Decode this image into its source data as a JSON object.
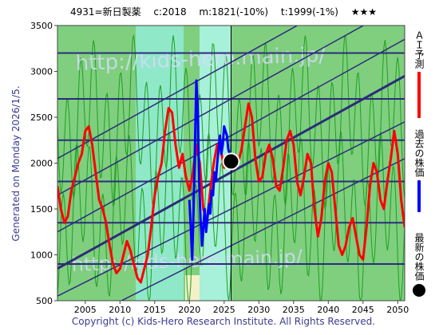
{
  "header": {
    "title": "4931=新日製薬　 c:2018 　m:1821(-10%) 　t:1999(-1%) 　★★★"
  },
  "side_label": "Generated on Monday 2026/1/5.",
  "footer": "Copyright (c) Kids-Hero Research Institute. All Rights Reserved.",
  "watermark": {
    "line1": "http://kids-hero.main.jp/",
    "line2": "http://kids-hero.main.jp/"
  },
  "legend": [
    {
      "label": "ＡＩ予測",
      "color": "#ff0000"
    },
    {
      "label": "過去の株価",
      "color": "#0000ff"
    },
    {
      "label": "最新の株価",
      "color": "#000000"
    }
  ],
  "chart_data": {
    "type": "line",
    "title": "4931=新日製薬　 c:2018 　m:1821(-10%) 　t:1999(-1%) 　★★★",
    "xlabel": "",
    "ylabel": "",
    "xlim": [
      2001,
      2051
    ],
    "ylim": [
      500,
      3500
    ],
    "x_ticks": [
      2005,
      2010,
      2015,
      2020,
      2025,
      2030,
      2035,
      2040,
      2045,
      2050
    ],
    "y_ticks": [
      500,
      1000,
      1500,
      2000,
      2500,
      3000,
      3500
    ],
    "grid": false,
    "colors": {
      "ai": "#ff0000",
      "past": "#0000ff",
      "latest": "#000000",
      "band": "#2c2c7a",
      "green": "#1f9f1f"
    },
    "horizontal_lines": [
      900,
      1350,
      1800,
      2250,
      2700,
      3200
    ],
    "trend_lines": [
      {
        "x": [
          2001,
          2051
        ],
        "y": [
          550,
          2450
        ]
      },
      {
        "x": [
          2001,
          2051
        ],
        "y": [
          850,
          2950
        ],
        "bold": true
      },
      {
        "x": [
          2001,
          2051
        ],
        "y": [
          1250,
          3350
        ]
      },
      {
        "x": [
          2001,
          2051
        ],
        "y": [
          1650,
          3750
        ]
      },
      {
        "x": [
          2001,
          2051
        ],
        "y": [
          2050,
          4150
        ]
      },
      {
        "x": [
          2001,
          2051
        ],
        "y": [
          150,
          2050
        ]
      }
    ],
    "latest_point": {
      "x": 2026.0,
      "y": 2018
    },
    "series": [
      {
        "name": "ＡＩ予測",
        "color": "#ff0000",
        "x": [
          2001.0,
          2001.5,
          2002.0,
          2002.5,
          2003.0,
          2003.5,
          2004.0,
          2004.5,
          2005.0,
          2005.5,
          2006.0,
          2006.5,
          2007.0,
          2007.5,
          2008.0,
          2008.5,
          2009.0,
          2009.5,
          2010.0,
          2010.5,
          2011.0,
          2011.5,
          2012.0,
          2012.5,
          2013.0,
          2013.5,
          2014.0,
          2014.5,
          2015.0,
          2015.5,
          2016.0,
          2016.5,
          2017.0,
          2017.5,
          2018.0,
          2018.5,
          2019.0,
          2019.5,
          2020.0,
          2020.5,
          2021.0,
          2021.5,
          2022.0,
          2022.5,
          2023.0,
          2023.5,
          2024.0,
          2024.5,
          2025.0,
          2025.5,
          2026.0,
          2026.5,
          2027.0,
          2027.5,
          2028.0,
          2028.5,
          2029.0,
          2029.5,
          2030.0,
          2030.5,
          2031.0,
          2031.5,
          2032.0,
          2032.5,
          2033.0,
          2033.5,
          2034.0,
          2034.5,
          2035.0,
          2035.5,
          2036.0,
          2036.5,
          2037.0,
          2037.5,
          2038.0,
          2038.5,
          2039.0,
          2039.5,
          2040.0,
          2040.5,
          2041.0,
          2041.5,
          2042.0,
          2042.5,
          2043.0,
          2043.5,
          2044.0,
          2044.5,
          2045.0,
          2045.5,
          2046.0,
          2046.5,
          2047.0,
          2047.5,
          2048.0,
          2048.5,
          2049.0,
          2049.5,
          2050.0,
          2050.5,
          2051.0
        ],
        "values": [
          1750,
          1500,
          1350,
          1420,
          1700,
          1850,
          2000,
          2100,
          2350,
          2400,
          2200,
          1900,
          1600,
          1500,
          1350,
          1100,
          900,
          800,
          850,
          1000,
          1150,
          1050,
          900,
          750,
          700,
          850,
          1000,
          1300,
          1650,
          1850,
          2000,
          2350,
          2600,
          2550,
          2200,
          1950,
          2100,
          1850,
          1700,
          1900,
          2200,
          2000,
          1500,
          1350,
          1700,
          2000,
          2200,
          2150,
          1950,
          2050,
          2100,
          1950,
          2000,
          2150,
          2400,
          2650,
          2500,
          2050,
          1800,
          1850,
          2100,
          2200,
          2050,
          1750,
          1700,
          1950,
          2250,
          2350,
          2200,
          1800,
          1650,
          1850,
          2100,
          2000,
          1500,
          1200,
          1400,
          1800,
          2000,
          1900,
          1500,
          1100,
          1000,
          1100,
          1300,
          1400,
          1200,
          1000,
          950,
          1300,
          1750,
          2000,
          1900,
          1600,
          1500,
          1800,
          2050,
          2350,
          2100,
          1600,
          1300
        ]
      },
      {
        "name": "過去の株価",
        "color": "#0000ff",
        "x": [
          2020.0,
          2020.2,
          2020.4,
          2020.6,
          2020.8,
          2021.0,
          2021.2,
          2021.4,
          2021.6,
          2021.8,
          2022.0,
          2022.2,
          2022.4,
          2022.6,
          2022.8,
          2023.0,
          2023.2,
          2023.4,
          2023.6,
          2023.8,
          2024.0,
          2024.2,
          2024.4,
          2024.6,
          2024.8,
          2025.0,
          2025.2,
          2025.4,
          2025.6,
          2025.8,
          2026.0
        ],
        "values": [
          1600,
          1300,
          950,
          1500,
          2200,
          2900,
          2600,
          1800,
          1400,
          1100,
          1300,
          1500,
          1250,
          1400,
          1550,
          1450,
          1700,
          1650,
          1900,
          1800,
          2000,
          2150,
          2300,
          2100,
          2200,
          2400,
          2350,
          2300,
          2150,
          2100,
          2018
        ]
      }
    ]
  }
}
